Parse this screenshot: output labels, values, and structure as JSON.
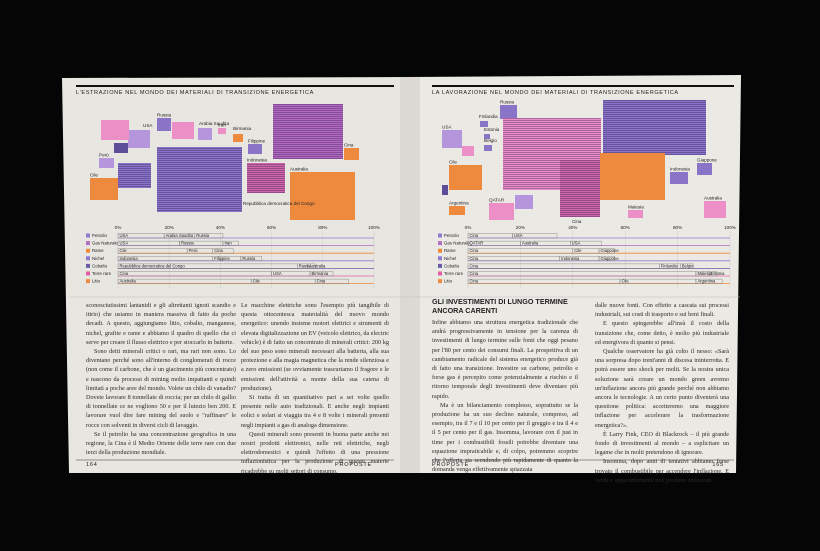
{
  "left_page": {
    "header": "L'ESTRAZIONE NEL MONDO DEI MATERIALI DI TRANSIZIONE ENERGETICA",
    "chart": {
      "shape_labels": [
        "Russia",
        "USA",
        "Arabia Saudita",
        "Iran",
        "Birmania",
        "Perù",
        "Cile",
        "Filippine",
        "Indonesia",
        "Cina",
        "Australia",
        "Repubblica democratica del Congo"
      ],
      "axis": [
        "0%",
        "20%",
        "40%",
        "60%",
        "80%",
        "100%"
      ],
      "rows": [
        {
          "name": "Petrolio",
          "color": "#8f7ad0",
          "segments": [
            {
              "name": "USA",
              "share": 18
            },
            {
              "name": "Arabia Saudita",
              "share": 12
            },
            {
              "name": "Russia",
              "share": 11
            }
          ]
        },
        {
          "name": "Gas Naturale",
          "color": "#b06fc0",
          "segments": [
            {
              "name": "USA",
              "share": 24
            },
            {
              "name": "Russia",
              "share": 17
            },
            {
              "name": "Iran",
              "share": 6
            }
          ]
        },
        {
          "name": "Rame",
          "color": "#ee8a3e",
          "segments": [
            {
              "name": "Cile",
              "share": 27
            },
            {
              "name": "Perù",
              "share": 10
            },
            {
              "name": "Cina",
              "share": 8
            }
          ]
        },
        {
          "name": "Nichel",
          "color": "#8f7ad0",
          "segments": [
            {
              "name": "Indonesia",
              "share": 37
            },
            {
              "name": "Filippine",
              "share": 11
            },
            {
              "name": "Russia",
              "share": 8
            }
          ]
        },
        {
          "name": "Cobalto",
          "color": "#6c5aa8",
          "segments": [
            {
              "name": "Repubblica democratica del Congo",
              "share": 70
            },
            {
              "name": "Russia",
              "share": 4
            },
            {
              "name": "Australia",
              "share": 3
            }
          ]
        },
        {
          "name": "Terre rare",
          "color": "#e060a8",
          "segments": [
            {
              "name": "Cina",
              "share": 60
            },
            {
              "name": "USA",
              "share": 15
            },
            {
              "name": "Birmania",
              "share": 9
            }
          ]
        },
        {
          "name": "Litio",
          "color": "#ee8a3e",
          "segments": [
            {
              "name": "Australia",
              "share": 52
            },
            {
              "name": "Cile",
              "share": 25
            },
            {
              "name": "Cina",
              "share": 13
            }
          ]
        }
      ]
    },
    "columns": [
      [
        "sconosciutissimi lantanidi e gli altrettanti ignoti scandio e ittrio) che usiamo in maniera massiva di fatto da poche decadi. A questo, aggiungiamo litio, cobalto, manganese, nichel, grafite e rame e abbiamo il quadro di quello che ci serve per creare il flusso elettrico e per stoccarlo in batterie.",
        "Sono detti minerali critici o rari, ma rari non sono. Lo diventano perché sono all'interno di conglomerati di rocce (non come il carbone, che è un giacimento più concentrato) e nascono da processi di mining molto impattanti e quindi limitati a poche aree del mondo. Volete un chilo di vanadio? Dovete lavorare 8 tonnellate di roccia; per un chilo di gallio di tonnellate ce ne vogliono 50 e per il lutezio ben 200. E lavorare vuol dire fare mining del suolo e \"raffinare\" le rocce con solventi in diversi cicli di lavaggio.",
        "Se il petrolio ha una concentrazione geografica in una regione, la Cina è il Medio Oriente delle terre rare con due terzi della produzione mondiale."
      ],
      [
        "Le macchine elettriche sono l'esempio più tangibile di questa ottocentesca materialità del nuovo mondo energetico: unendo insieme motori elettrici e strumenti di elevata digitalizzazione un EV (veicolo elettrico, da electric vehicle) è di fatto un concentrato di minerali critici: 200 kg del suo peso sono minerali necessari alla batteria, alla sua protezione e alla magia magnetica che la rende silenziosa e a zero emissioni (se ovviamente trascuriamo il fragore e le emissioni dell'attività a monte della sua catena di produzione).",
        "Si tratta di un quantitativo pari a sei volte quello presente nelle auto tradizionali. E anche negli impianti eolici e solari si viaggia tra 4 e 8 volte i minerali presenti negli impianti a gas di analoga dimensione.",
        "Questi minerali sono presenti in buona parte anche nei nostri prodotti elettronici, nelle reti elettriche, negli elettrodomestici e quindi l'effetto di una pressione inflazionistica per la produzione di queste materie ricadrebbe su molti settori di consumo."
      ]
    ],
    "folio": "164",
    "section": "PROPOSTE"
  },
  "right_page": {
    "header": "LA LAVORAZIONE NEL MONDO DEI MATERIALI DI TRANSIZIONE ENERGETICA",
    "chart": {
      "shape_labels": [
        "Russia",
        "Finlandia",
        "Estonia",
        "Belgio",
        "USA",
        "Cile",
        "Indonesia",
        "Giappone",
        "Argentina",
        "QATAR",
        "Cina",
        "Malesia",
        "Australia"
      ],
      "axis": [
        "0%",
        "20%",
        "40%",
        "60%",
        "80%",
        "100%"
      ],
      "rows": [
        {
          "name": "Petrolio",
          "color": "#8f7ad0",
          "segments": [
            {
              "name": "Cina",
              "share": 17
            },
            {
              "name": "USA",
              "share": 17
            }
          ]
        },
        {
          "name": "Gas Naturale",
          "color": "#b06fc0",
          "segments": [
            {
              "name": "QATAR",
              "share": 20
            },
            {
              "name": "Australia",
              "share": 19
            },
            {
              "name": "USA",
              "share": 12
            }
          ]
        },
        {
          "name": "Rame",
          "color": "#ee8a3e",
          "segments": [
            {
              "name": "Cina",
              "share": 40
            },
            {
              "name": "Cile",
              "share": 10
            },
            {
              "name": "Giappone",
              "share": 6
            }
          ]
        },
        {
          "name": "Nichel",
          "color": "#8f7ad0",
          "segments": [
            {
              "name": "Cina",
              "share": 35
            },
            {
              "name": "Indonesia",
              "share": 15
            },
            {
              "name": "Giappone",
              "share": 6
            }
          ]
        },
        {
          "name": "Cobalto",
          "color": "#6c5aa8",
          "segments": [
            {
              "name": "Cina",
              "share": 73
            },
            {
              "name": "Finlandia",
              "share": 8
            },
            {
              "name": "Belgio",
              "share": 5
            }
          ]
        },
        {
          "name": "Terre rare",
          "color": "#e060a8",
          "segments": [
            {
              "name": "Cina",
              "share": 87
            },
            {
              "name": "Malesia",
              "share": 5
            },
            {
              "name": "Estonia",
              "share": 3
            }
          ]
        },
        {
          "name": "Litio",
          "color": "#ee8a3e",
          "segments": [
            {
              "name": "Cina",
              "share": 58
            },
            {
              "name": "Cile",
              "share": 29
            },
            {
              "name": "Argentina",
              "share": 10
            }
          ]
        }
      ]
    },
    "heading": "GLI INVESTIMENTI DI LUNGO TERMINE ANCORA CARENTI",
    "columns": [
      [
        "Infine abbiamo una struttura energetica tradizionale che andrà progressivamente in tensione per la carenza di investimenti di lungo termine sulle fonti che oggi pesano per l'80 per cento dei consumi finali. La prospettiva di un cambiamento radicale del sistema energetico produce già di fatto una transizione. Investire su carbone, petrolio e forse gas è percepito come potenzialmente a rischio e il ritorno temporale degli investimenti deve diventare più rapido.",
        "Ma è un bilanciamento complesso, soprattutto se la produzione ha un suo declino naturale, compreso, ad esempio, tra il 7 e il 10 per cento per il greggio e tra il 4 e il 5 per cento per il gas. Insomma, lavorare con il just in time per i combustibili fossili potrebbe diventare una equazione impraticabile e, di colpo, potremmo scoprire che l'offerta sta scendendo più rapidamente di quanto la domanda venga effettivamente spiazzata"
      ],
      [
        "dalle nuove fonti. Con effetto a cascata sui processi industriali, sui costi di trasporto e sui beni finali.",
        "E questo spingerebbe all'insù il costo della transizione che, come detto, è molto più industriale ed energivora di quanto si pensi.",
        "Qualche osservatore ha già colto il nesso: «Sarà una sorpresa dopo trent'anni di discesa ininterrotta. E potrà essere uno shock per molti. Se la nostra unica soluzione sarà creare un mondo green avremo un'inflazione ancora più grande perché non abbiamo ancora le tecnologie. A un certo punto diventerà una questione politica: accetteremo una maggiore inflazione per accelerare la trasformazione energetica?».",
        "È Larry Fink, CEO di Blackrock – il più grande fondo di investimenti al mondo – a esplicitare un legame che in molti pretendono di ignorare.",
        "Insomma, dopo anni di tentativi abbiamo forse trovato il combustibile per accendere l'inflazione. E verde e apparentemente non produce emissioni."
      ]
    ],
    "folio": "165",
    "section": "PROPOSTE"
  }
}
